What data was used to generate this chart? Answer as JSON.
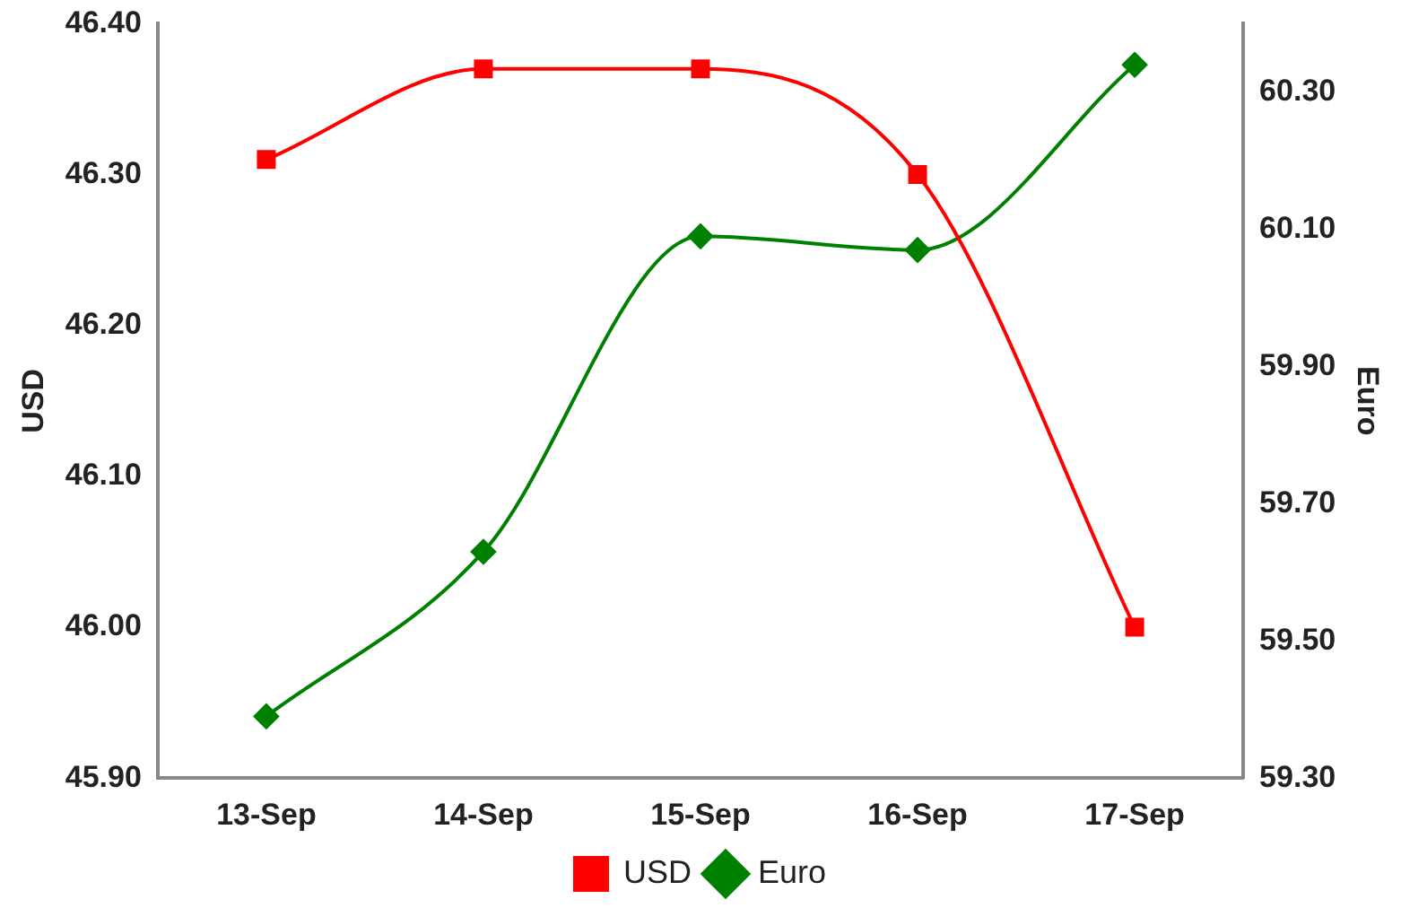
{
  "chart_data": {
    "type": "line",
    "ylabel": "USD",
    "y2label": "Euro",
    "categories": [
      "13-Sep",
      "14-Sep",
      "15-Sep",
      "16-Sep",
      "17-Sep"
    ],
    "series": [
      {
        "name": "USD",
        "color": "#ff0000",
        "values": [
          46.31,
          46.37,
          46.37,
          46.3,
          46.0
        ],
        "marker": "square"
      },
      {
        "name": "Euro",
        "color": "#008000",
        "values": [
          59.39,
          59.63,
          60.09,
          60.07,
          60.34
        ],
        "axis": "y2",
        "marker": "diamond"
      }
    ],
    "ylim": [
      45.9,
      46.4
    ],
    "yticks": [
      {
        "value": 45.9,
        "label": "45.90"
      },
      {
        "value": 46.0,
        "label": "46.00"
      },
      {
        "value": 46.1,
        "label": "46.10"
      },
      {
        "value": 46.2,
        "label": "46.20"
      },
      {
        "value": 46.3,
        "label": "46.30"
      },
      {
        "value": 46.4,
        "label": "46.40"
      }
    ],
    "y2lim": [
      59.3,
      60.4
    ],
    "y2ticks": [
      {
        "value": 59.3,
        "label": "59.30"
      },
      {
        "value": 59.5,
        "label": "59.50"
      },
      {
        "value": 59.7,
        "label": "59.70"
      },
      {
        "value": 59.9,
        "label": "59.90"
      },
      {
        "value": 60.1,
        "label": "60.10"
      },
      {
        "value": 60.3,
        "label": "60.30"
      }
    ],
    "grid": false,
    "legend": "bottom",
    "line_style": "solid"
  }
}
